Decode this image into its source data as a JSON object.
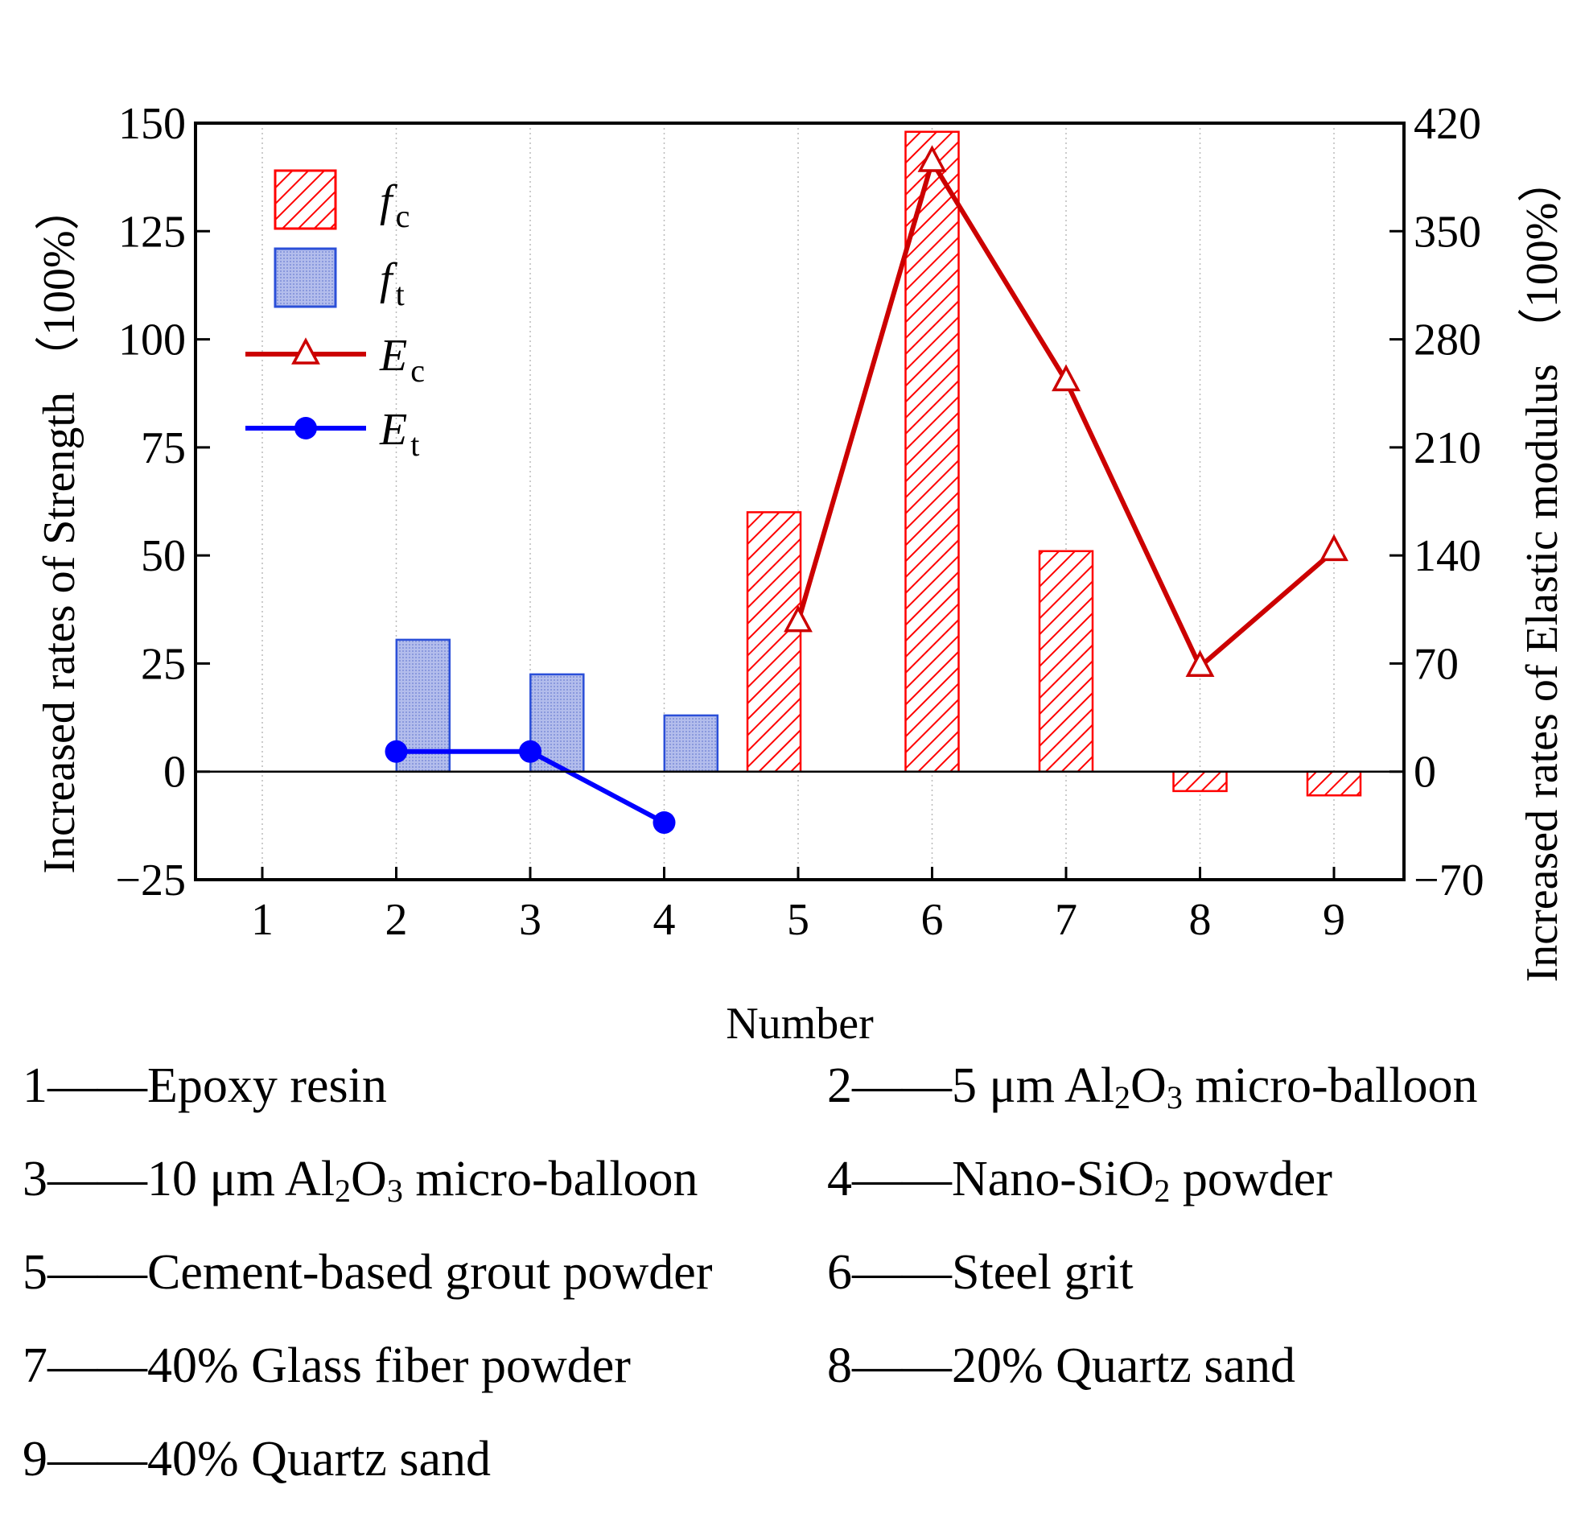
{
  "chart_data": {
    "type": "bar",
    "x": [
      1,
      2,
      3,
      4,
      5,
      6,
      7,
      8,
      9
    ],
    "xlabel": "Number",
    "ylabel": "Increased rates of Strength （100%）",
    "y2label": "Increased rates of Elastic modulus （100%）",
    "ylim": [
      -25,
      150
    ],
    "y2lim": [
      -70,
      420
    ],
    "yticks": [
      -25,
      0,
      25,
      50,
      75,
      100,
      125,
      150
    ],
    "y2ticks": [
      -70,
      0,
      70,
      140,
      210,
      280,
      350,
      420
    ],
    "ytick_labels": [
      "−25",
      "0",
      "25",
      "50",
      "75",
      "100",
      "125",
      "150"
    ],
    "y2tick_labels": [
      "−70",
      "0",
      "70",
      "140",
      "210",
      "280",
      "350",
      "420"
    ],
    "xtick_labels": [
      "1",
      "2",
      "3",
      "4",
      "5",
      "6",
      "7",
      "8",
      "9"
    ],
    "grid": "vertical dotted",
    "legend_position": "top-left",
    "series": [
      {
        "name": "f",
        "sub": "c",
        "kind": "bar",
        "axis": "left",
        "color": "#ff0000",
        "fill": "hatched",
        "x": [
          5,
          6,
          7,
          8,
          9
        ],
        "values": [
          60,
          148,
          51,
          -4.5,
          -5.5
        ]
      },
      {
        "name": "f",
        "sub": "t",
        "kind": "bar",
        "axis": "left",
        "color": "#2b4fd8",
        "fill": "#a9b5e8",
        "x": [
          2,
          3,
          4
        ],
        "values": [
          30.5,
          22.5,
          13
        ]
      },
      {
        "name": "E",
        "sub": "c",
        "kind": "line",
        "marker": "open-triangle",
        "axis": "right",
        "color": "#cc0000",
        "x": [
          5,
          6,
          7,
          8,
          9
        ],
        "values": [
          97,
          395,
          253,
          68,
          143
        ]
      },
      {
        "name": "E",
        "sub": "t",
        "kind": "line",
        "marker": "filled-circle",
        "axis": "right",
        "color": "#0000ff",
        "x": [
          2,
          3,
          4
        ],
        "values": [
          13,
          13,
          -33
        ]
      }
    ]
  },
  "notes": [
    {
      "num": "1",
      "text": "Epoxy resin"
    },
    {
      "num": "2",
      "pre": "5 μm Al",
      "s1": "2",
      "mid": "O",
      "s2": "3",
      "post": " micro-balloon"
    },
    {
      "num": "3",
      "pre": "10 μm Al",
      "s1": "2",
      "mid": "O",
      "s2": "3",
      "post": " micro-balloon"
    },
    {
      "num": "4",
      "pre": "Nano-SiO",
      "s1": "2",
      "post": " powder"
    },
    {
      "num": "5",
      "text": "Cement-based grout powder"
    },
    {
      "num": "6",
      "text": "Steel grit"
    },
    {
      "num": "7",
      "text": "40% Glass fiber powder"
    },
    {
      "num": "8",
      "text": "20% Quartz sand"
    },
    {
      "num": "9",
      "text": "40% Quartz sand"
    }
  ],
  "note_dash": "——"
}
